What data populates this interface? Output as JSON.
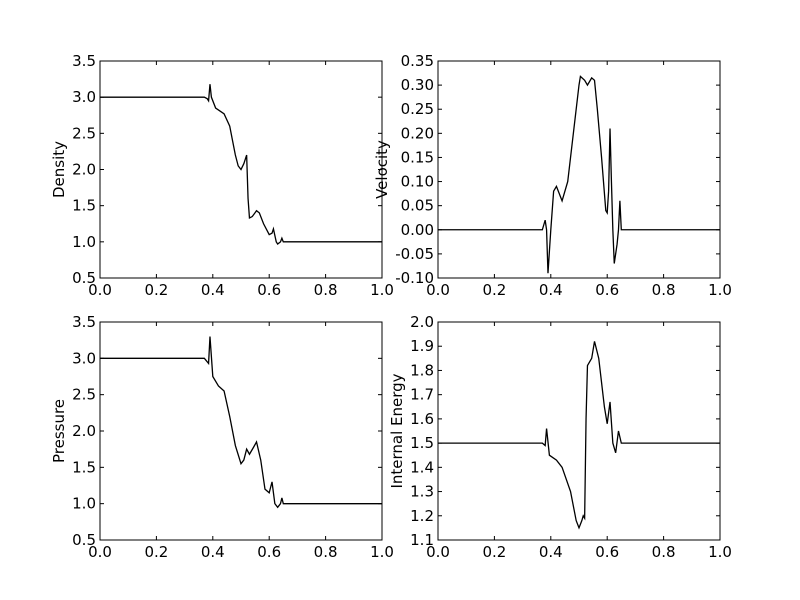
{
  "chart_data": [
    {
      "type": "line",
      "ylabel": "Density",
      "color": "#000000",
      "x": [
        0,
        0.37,
        0.38,
        0.385,
        0.39,
        0.395,
        0.41,
        0.44,
        0.46,
        0.47,
        0.48,
        0.49,
        0.5,
        0.51,
        0.52,
        0.525,
        0.53,
        0.54,
        0.555,
        0.565,
        0.58,
        0.6,
        0.61,
        0.615,
        0.625,
        0.63,
        0.64,
        0.645,
        0.65,
        1.0
      ],
      "values": [
        3.0,
        3.0,
        2.98,
        2.95,
        3.18,
        3.0,
        2.85,
        2.77,
        2.6,
        2.4,
        2.2,
        2.05,
        2.0,
        2.08,
        2.2,
        1.6,
        1.33,
        1.35,
        1.43,
        1.4,
        1.25,
        1.1,
        1.12,
        1.18,
        1.0,
        0.97,
        1.0,
        1.05,
        1.0,
        1.0
      ],
      "xlim": [
        0,
        1
      ],
      "ylim": [
        0.5,
        3.5
      ],
      "xticks": [
        {
          "value": 0,
          "label": "0.0"
        },
        0.2,
        0.4,
        0.6,
        0.8,
        {
          "value": 1,
          "label": "1.0"
        }
      ],
      "yticks": [
        0.5,
        {
          "value": 1,
          "label": "1.0"
        },
        1.5,
        {
          "value": 2,
          "label": "2.0"
        },
        2.5,
        {
          "value": 3,
          "label": "3.0"
        },
        3.5
      ]
    },
    {
      "type": "line",
      "ylabel": "Velocity",
      "color": "#000000",
      "x": [
        0,
        0.37,
        0.38,
        0.385,
        0.39,
        0.4,
        0.41,
        0.42,
        0.44,
        0.46,
        0.48,
        0.5,
        0.505,
        0.52,
        0.53,
        0.545,
        0.555,
        0.565,
        0.58,
        0.595,
        0.6,
        0.605,
        0.61,
        0.615,
        0.62,
        0.625,
        0.635,
        0.64,
        0.645,
        0.65,
        1.0
      ],
      "values": [
        0,
        0,
        0.02,
        0.0,
        -0.09,
        0.0,
        0.08,
        0.09,
        0.06,
        0.1,
        0.2,
        0.3,
        0.318,
        0.31,
        0.3,
        0.315,
        0.31,
        0.25,
        0.15,
        0.04,
        0.035,
        0.08,
        0.21,
        0.1,
        0.0,
        -0.07,
        -0.03,
        0.0,
        0.06,
        0.0,
        0.0
      ],
      "xlim": [
        0,
        1
      ],
      "ylim": [
        -0.1,
        0.35
      ],
      "xticks": [
        {
          "value": 0,
          "label": "0.0"
        },
        0.2,
        0.4,
        0.6,
        0.8,
        {
          "value": 1,
          "label": "1.0"
        }
      ],
      "yticks": [
        {
          "value": -0.1,
          "label": "-0.10"
        },
        -0.05,
        {
          "value": 0,
          "label": "0.00"
        },
        0.05,
        {
          "value": 0.1,
          "label": "0.10"
        },
        0.15,
        {
          "value": 0.2,
          "label": "0.20"
        },
        0.25,
        {
          "value": 0.3,
          "label": "0.30"
        },
        0.35
      ]
    },
    {
      "type": "line",
      "ylabel": "Pressure",
      "color": "#000000",
      "x": [
        0,
        0.37,
        0.385,
        0.39,
        0.4,
        0.42,
        0.44,
        0.46,
        0.48,
        0.5,
        0.51,
        0.52,
        0.53,
        0.545,
        0.555,
        0.57,
        0.585,
        0.6,
        0.61,
        0.62,
        0.63,
        0.64,
        0.645,
        0.65,
        1.0
      ],
      "values": [
        3.0,
        3.0,
        2.93,
        3.3,
        2.75,
        2.62,
        2.55,
        2.2,
        1.8,
        1.55,
        1.6,
        1.75,
        1.68,
        1.78,
        1.85,
        1.6,
        1.2,
        1.15,
        1.3,
        1.0,
        0.95,
        1.0,
        1.08,
        1.0,
        1.0
      ],
      "xlim": [
        0,
        1
      ],
      "ylim": [
        0.5,
        3.5
      ],
      "xticks": [
        {
          "value": 0,
          "label": "0.0"
        },
        0.2,
        0.4,
        0.6,
        0.8,
        {
          "value": 1,
          "label": "1.0"
        }
      ],
      "yticks": [
        0.5,
        {
          "value": 1,
          "label": "1.0"
        },
        1.5,
        {
          "value": 2,
          "label": "2.0"
        },
        2.5,
        {
          "value": 3,
          "label": "3.0"
        },
        3.5
      ]
    },
    {
      "type": "line",
      "ylabel": "Internal Energy",
      "color": "#000000",
      "x": [
        0,
        0.37,
        0.38,
        0.385,
        0.395,
        0.42,
        0.44,
        0.47,
        0.49,
        0.5,
        0.51,
        0.515,
        0.52,
        0.525,
        0.53,
        0.545,
        0.555,
        0.57,
        0.59,
        0.6,
        0.61,
        0.62,
        0.63,
        0.64,
        0.65,
        1.0
      ],
      "values": [
        1.5,
        1.5,
        1.49,
        1.56,
        1.45,
        1.43,
        1.4,
        1.3,
        1.18,
        1.15,
        1.18,
        1.2,
        1.19,
        1.6,
        1.82,
        1.85,
        1.92,
        1.85,
        1.65,
        1.58,
        1.67,
        1.5,
        1.46,
        1.55,
        1.5,
        1.5
      ],
      "xlim": [
        0,
        1
      ],
      "ylim": [
        1.1,
        2.0
      ],
      "xticks": [
        {
          "value": 0,
          "label": "0.0"
        },
        0.2,
        0.4,
        0.6,
        0.8,
        {
          "value": 1,
          "label": "1.0"
        }
      ],
      "yticks": [
        1.1,
        1.2,
        1.3,
        1.4,
        1.5,
        1.6,
        1.7,
        1.8,
        1.9,
        {
          "value": 2,
          "label": "2.0"
        }
      ]
    }
  ]
}
